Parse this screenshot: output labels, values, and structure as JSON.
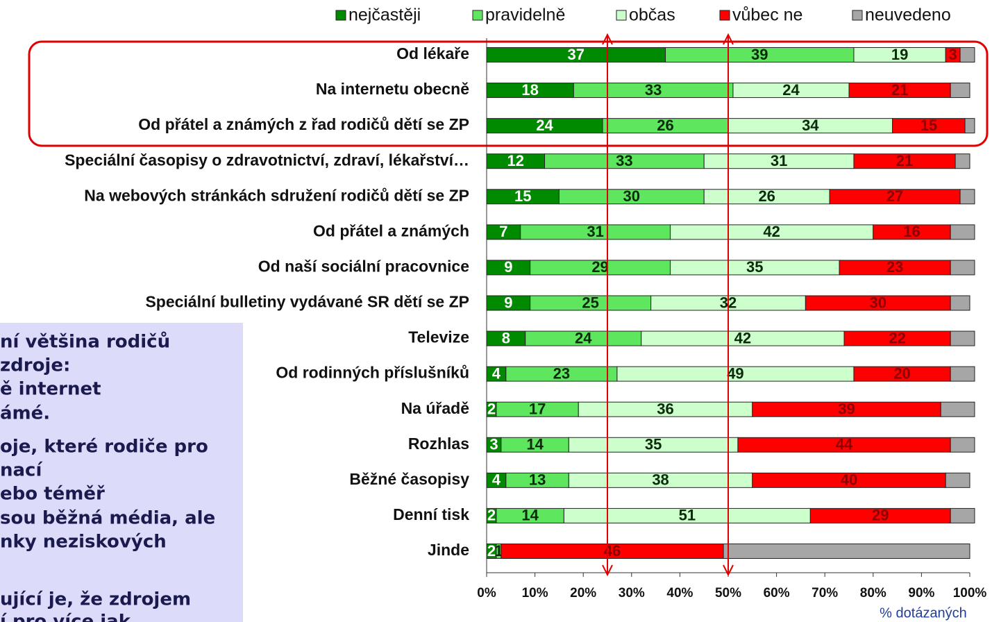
{
  "chart_data": {
    "type": "stacked-bar-horizontal",
    "categories": [
      "Od lékaře",
      "Na internetu obecně",
      "Od přátel a známých z řad rodičů dětí se ZP",
      "Speciální časopisy o zdravotnictví, zdraví, lékařství…",
      "Na webových stránkách sdružení rodičů dětí se ZP",
      "Od přátel a známých",
      "Od naší sociální pracovnice",
      "Speciální bulletiny vydávané SR dětí se ZP",
      "Televize",
      "Od rodinných příslušníků",
      "Na úřadě",
      "Rozhlas",
      "Běžné časopisy",
      "Denní tisk",
      "Jinde"
    ],
    "series": [
      {
        "name": "nejčastěji",
        "color": "#008a00",
        "values": [
          37,
          18,
          24,
          12,
          15,
          7,
          9,
          9,
          8,
          4,
          2,
          3,
          4,
          2,
          2
        ]
      },
      {
        "name": "pravidelně",
        "color": "#5ee65e",
        "values": [
          39,
          33,
          26,
          33,
          30,
          31,
          29,
          25,
          24,
          23,
          17,
          14,
          13,
          14,
          1
        ]
      },
      {
        "name": "občas",
        "color": "#ccffcc",
        "values": [
          19,
          24,
          34,
          31,
          26,
          42,
          35,
          32,
          42,
          49,
          36,
          35,
          38,
          51,
          0
        ]
      },
      {
        "name": "vůbec ne",
        "color": "#ff0000",
        "values": [
          3,
          21,
          15,
          21,
          27,
          16,
          23,
          30,
          22,
          20,
          39,
          44,
          40,
          29,
          46
        ]
      },
      {
        "name": "neuvedeno",
        "color": "#a6a6a6",
        "values": [
          3,
          4,
          2,
          3,
          3,
          5,
          5,
          4,
          5,
          5,
          7,
          5,
          5,
          5,
          51
        ]
      }
    ],
    "labelled_series": [
      0,
      1,
      2,
      3
    ],
    "xlim": [
      0,
      100
    ],
    "xticks": [
      {
        "value": 0,
        "label": "0%"
      },
      {
        "value": 10,
        "label": "10%"
      },
      {
        "value": 20,
        "label": "20%"
      },
      {
        "value": 30,
        "label": "30%"
      },
      {
        "value": 40,
        "label": "40%"
      },
      {
        "value": 50,
        "label": "50%"
      },
      {
        "value": 60,
        "label": "60%"
      },
      {
        "value": 70,
        "label": "70%"
      },
      {
        "value": 80,
        "label": "80%"
      },
      {
        "value": 90,
        "label": "90%"
      },
      {
        "value": 100,
        "label": "100%"
      }
    ],
    "x_label": "% dotázaných",
    "reference_lines": [
      25,
      50
    ],
    "legend": "top"
  },
  "note_box": {
    "lines": [
      "ní většina rodičů",
      " zdroje:",
      "ě internet",
      "ámé.",
      "oje, které rodiče pro",
      "nací",
      "ebo téměř",
      "sou běžná média, ale",
      "nky neziskových",
      "ující je, že zdrojem",
      "í pro více jak"
    ]
  }
}
